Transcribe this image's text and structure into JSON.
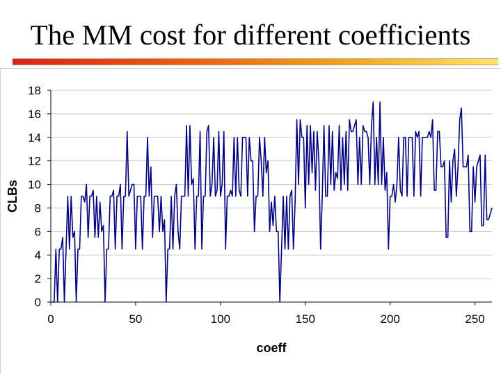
{
  "slide": {
    "title": "The MM cost for different coefficients"
  },
  "chart_data": {
    "type": "line",
    "title": "",
    "xlabel": "coeff",
    "ylabel": "CLBs",
    "xlim": [
      0,
      260
    ],
    "ylim": [
      0,
      18
    ],
    "xticks": [
      0,
      50,
      100,
      150,
      200,
      250
    ],
    "yticks": [
      0,
      2,
      4,
      6,
      8,
      10,
      12,
      14,
      16,
      18
    ],
    "grid": "horizontal",
    "legend": "none",
    "series_color": "#000080",
    "series": [
      {
        "values": [
          0,
          0,
          4.5,
          0,
          4.5,
          4.5,
          5.5,
          0,
          4.5,
          9,
          4.5,
          9,
          5.5,
          6,
          0,
          4.5,
          4.5,
          9,
          9,
          8.5,
          10,
          5.5,
          9,
          9,
          9.5,
          5.5,
          9,
          5.5,
          8.5,
          6,
          6.5,
          0,
          4.5,
          4.5,
          9,
          9,
          9.5,
          4.5,
          9,
          9,
          10,
          4.5,
          9,
          9,
          14.5,
          9,
          9.5,
          10,
          10,
          4.5,
          9,
          9,
          9,
          4.5,
          9,
          9,
          14,
          9,
          11.5,
          5.5,
          9,
          9,
          9,
          6,
          9,
          6,
          7,
          0,
          4.5,
          4.5,
          9,
          4.5,
          9,
          10,
          6,
          4.5,
          9,
          9,
          9,
          15,
          9,
          15,
          10,
          10.5,
          4.5,
          9,
          9,
          14.5,
          4.5,
          9,
          9,
          14.5,
          15,
          9,
          10,
          14,
          9,
          9.5,
          14.5,
          9,
          10,
          14.5,
          4.5,
          9,
          9,
          9.5,
          9,
          14,
          9,
          14,
          9.5,
          9,
          14,
          14,
          14,
          9,
          14,
          12,
          12,
          6,
          9,
          9,
          14,
          12,
          9,
          14,
          11,
          12,
          6,
          8.5,
          6.5,
          9,
          6,
          6,
          0,
          4.5,
          9,
          4.5,
          9,
          4.5,
          9,
          9.5,
          4.5,
          8.5,
          15.5,
          10,
          15.5,
          14,
          14,
          8,
          15,
          10,
          15,
          11,
          14.5,
          9.5,
          14.5,
          12,
          4.5,
          9,
          15,
          9,
          9,
          15,
          10,
          14.5,
          9.5,
          11,
          10.5,
          15,
          9.5,
          14,
          10,
          14.5,
          9.5,
          15.5,
          14.5,
          14.5,
          15,
          15.5,
          10,
          14,
          10,
          15,
          14.5,
          14.5,
          14,
          10,
          15,
          17,
          10,
          14,
          10,
          17,
          10,
          14,
          9.5,
          11,
          4.5,
          9,
          9,
          10,
          8.5,
          10,
          14,
          9.5,
          9,
          14,
          14,
          9,
          14,
          14,
          14,
          9,
          14.5,
          14,
          14.5,
          9,
          14,
          14,
          14,
          14,
          14.5,
          14,
          15.5,
          9.5,
          9.5,
          14.5,
          14.5,
          11.5,
          11.5,
          12,
          5.5,
          5.5,
          12,
          8.5,
          12,
          13,
          9,
          11.5,
          15.5,
          16.5,
          11.5,
          11.5,
          11.5,
          12.5,
          6,
          6,
          11.5,
          8.5,
          11.5,
          12,
          12.5,
          6.5,
          6.5,
          12.5,
          7,
          7,
          7.5,
          8
        ]
      }
    ]
  }
}
